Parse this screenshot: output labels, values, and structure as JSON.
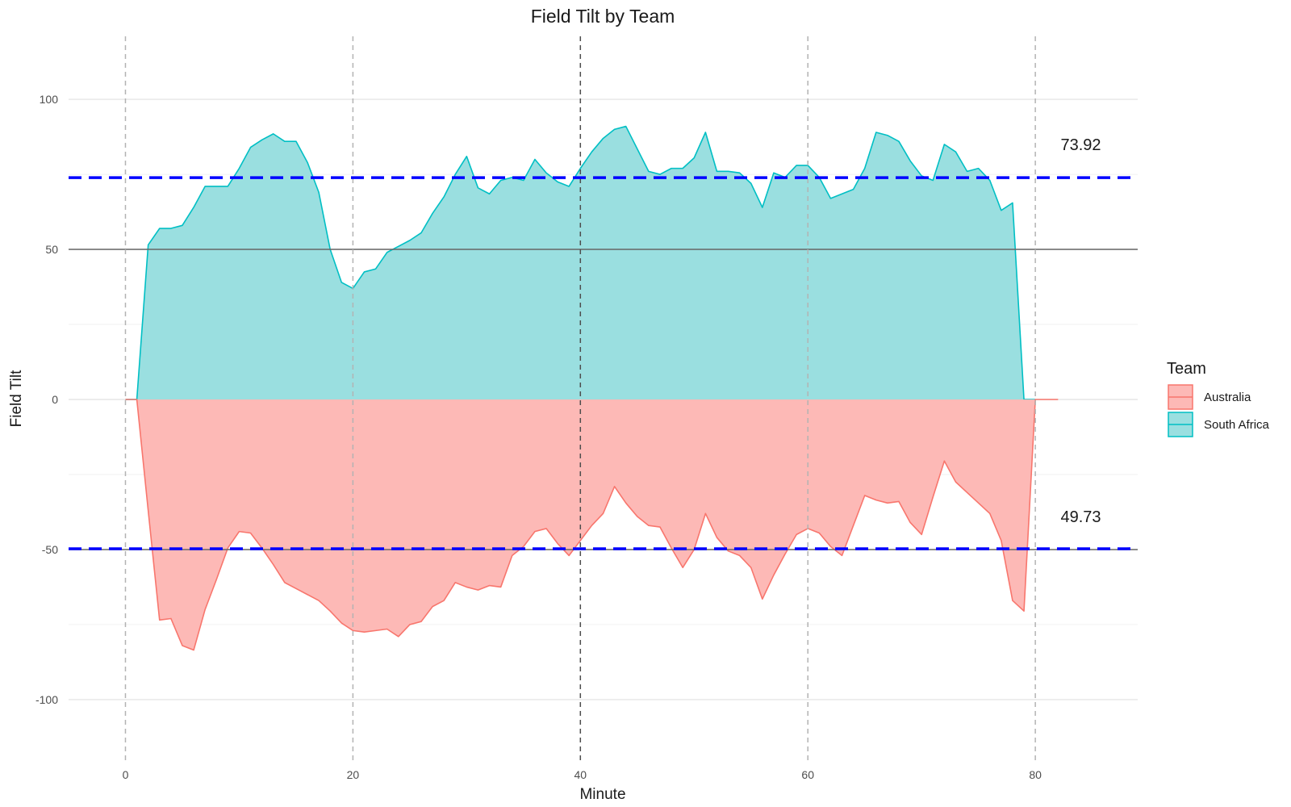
{
  "chart_data": {
    "type": "area",
    "title": "Field Tilt by Team",
    "xlabel": "Minute",
    "ylabel": "Field Tilt",
    "xlim": [
      -5,
      89
    ],
    "ylim": [
      -121,
      121
    ],
    "x_ticks": [
      0,
      20,
      40,
      60,
      80
    ],
    "y_ticks": [
      -100,
      -50,
      0,
      50,
      100
    ],
    "y_tick_labels": [
      "-100",
      "-50",
      "0",
      "50",
      "100"
    ],
    "grid": true,
    "legend": {
      "title": "Team",
      "position": "right"
    },
    "vlines": {
      "dashed_grey": [
        0,
        20,
        60,
        80
      ],
      "dashed_dark": [
        40
      ]
    },
    "hlines": {
      "solid": [
        50,
        -50
      ],
      "blue_dashed": [
        73.92,
        -49.73
      ]
    },
    "annotations": [
      {
        "text": "73.92",
        "x": 84,
        "y": 85
      },
      {
        "text": "49.73",
        "x": 84,
        "y": -39
      }
    ],
    "series": [
      {
        "name": "South Africa",
        "color": "#00BFC4",
        "fill": "#9ADFE0",
        "x": [
          0,
          1,
          2,
          3,
          4,
          5,
          6,
          7,
          8,
          9,
          10,
          11,
          12,
          13,
          14,
          15,
          16,
          17,
          18,
          19,
          20,
          21,
          22,
          23,
          24,
          25,
          26,
          27,
          28,
          29,
          30,
          31,
          32,
          33,
          34,
          35,
          36,
          37,
          38,
          39,
          40,
          41,
          42,
          43,
          44,
          45,
          46,
          47,
          48,
          49,
          50,
          51,
          52,
          53,
          54,
          55,
          56,
          57,
          58,
          59,
          60,
          61,
          62,
          63,
          64,
          65,
          66,
          67,
          68,
          69,
          70,
          71,
          72,
          73,
          74,
          75,
          76,
          77,
          78,
          79,
          80
        ],
        "values": [
          0,
          0,
          51.5,
          57,
          57,
          58,
          64,
          71,
          71,
          71,
          77,
          84,
          86.5,
          88.5,
          86,
          86,
          79,
          69,
          50,
          39,
          37,
          42.5,
          43.5,
          49,
          51,
          53,
          55.5,
          62,
          67.5,
          75,
          81,
          70.5,
          68.5,
          73,
          74,
          73,
          80,
          75.5,
          72.5,
          71,
          77,
          82.5,
          87,
          90,
          91,
          83.5,
          76,
          75,
          77,
          77,
          80.5,
          89,
          76,
          76,
          75.5,
          72,
          64,
          75.5,
          74,
          78,
          78,
          74,
          67,
          68.5,
          70,
          77,
          89,
          88,
          86,
          79.5,
          74.5,
          73,
          85,
          82.5,
          76,
          77,
          73,
          63,
          65.5,
          0,
          0
        ]
      },
      {
        "name": "Australia",
        "color": "#F8766D",
        "fill": "#FDB9B6",
        "x": [
          0,
          1,
          2,
          3,
          4,
          5,
          6,
          7,
          8,
          9,
          10,
          11,
          12,
          13,
          14,
          15,
          16,
          17,
          18,
          19,
          20,
          21,
          22,
          23,
          24,
          25,
          26,
          27,
          28,
          29,
          30,
          31,
          32,
          33,
          34,
          35,
          36,
          37,
          38,
          39,
          40,
          41,
          42,
          43,
          44,
          45,
          46,
          47,
          48,
          49,
          50,
          51,
          52,
          53,
          54,
          55,
          56,
          57,
          58,
          59,
          60,
          61,
          62,
          63,
          64,
          65,
          66,
          67,
          68,
          69,
          70,
          71,
          72,
          73,
          74,
          75,
          76,
          77,
          78,
          79,
          80,
          81,
          82
        ],
        "values": [
          0,
          0,
          -37,
          -73.5,
          -73,
          -82,
          -83.5,
          -70,
          -60,
          -49.5,
          -44,
          -44.5,
          -49.5,
          -55,
          -61,
          -63,
          -65,
          -67,
          -70.5,
          -74.5,
          -77,
          -77.5,
          -77,
          -76.5,
          -79,
          -75,
          -74,
          -69,
          -67,
          -61,
          -62.5,
          -63.5,
          -62,
          -62.5,
          -52,
          -49,
          -44,
          -43,
          -48,
          -52,
          -47,
          -42,
          -38,
          -29,
          -34.5,
          -39,
          -42,
          -42.5,
          -49.5,
          -56,
          -50,
          -38,
          -46,
          -50.5,
          -52,
          -56,
          -66.5,
          -58.5,
          -51.5,
          -45,
          -43,
          -44.5,
          -49,
          -52,
          -42,
          -32,
          -33.5,
          -34.5,
          -34,
          -41,
          -45,
          -32.5,
          -20.5,
          -27.5,
          -31,
          -34.5,
          -38,
          -47,
          -67,
          -70.5,
          0,
          0,
          0
        ]
      }
    ]
  }
}
